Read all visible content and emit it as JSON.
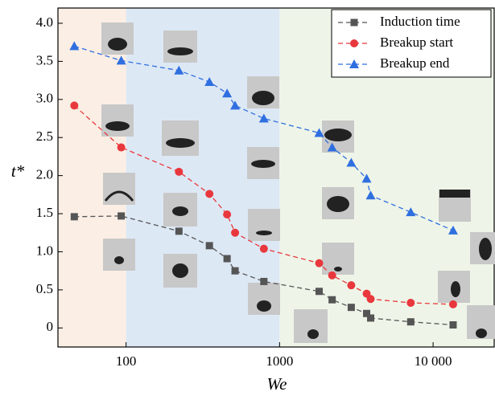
{
  "chart_data": {
    "type": "line",
    "x_label": "We",
    "y_label": "t*",
    "xscale": "log",
    "xlim": [
      36,
      25000
    ],
    "ylim": [
      -0.25,
      4.2
    ],
    "xticks": [
      100,
      1000,
      {
        "value": 10000,
        "label": "10 000"
      }
    ],
    "yticks": [
      0,
      0.5,
      {
        "value": 1,
        "label": "1.0"
      },
      1.5,
      {
        "value": 2,
        "label": "2.0"
      },
      2.5,
      {
        "value": 3,
        "label": "3.0"
      },
      3.5,
      {
        "value": 4,
        "label": "4.0"
      }
    ],
    "region_edges": [
      100,
      1000
    ],
    "region_colors": [
      "#fbeee4",
      "#dde8f5",
      "#eef5e8"
    ],
    "legend": "upper right",
    "x": [
      46,
      93,
      221,
      349,
      455,
      513,
      790,
      1810,
      2200,
      2930,
      3690,
      3920,
      7150,
      13500
    ],
    "series": [
      {
        "name": "Induction time",
        "color": "#555555",
        "marker": "square",
        "values": [
          1.46,
          1.47,
          1.27,
          1.08,
          0.91,
          0.75,
          0.61,
          0.48,
          0.37,
          0.27,
          0.19,
          0.13,
          0.08,
          0.04
        ]
      },
      {
        "name": "Breakup start",
        "color": "#e8383d",
        "marker": "circle",
        "values": [
          2.92,
          2.37,
          2.05,
          1.76,
          1.49,
          1.25,
          1.04,
          0.85,
          0.69,
          0.56,
          0.45,
          0.38,
          0.33,
          0.31
        ]
      },
      {
        "name": "Breakup end",
        "color": "#2f6fe0",
        "marker": "triangle",
        "values": [
          3.7,
          3.51,
          3.38,
          3.23,
          3.08,
          2.92,
          2.75,
          2.56,
          2.37,
          2.17,
          1.96,
          1.74,
          1.52,
          1.28
        ]
      }
    ]
  }
}
